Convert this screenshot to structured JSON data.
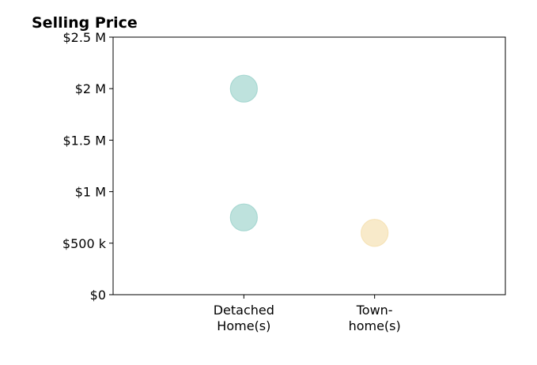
{
  "chart_data": {
    "type": "scatter",
    "title": "Selling Price",
    "xlabel": "",
    "ylabel": "",
    "categories": [
      [
        "Detached",
        "Home(s)"
      ],
      [
        "Town-",
        "home(s)"
      ]
    ],
    "xlim": [
      -1,
      2
    ],
    "ylim": [
      0,
      2500000
    ],
    "yticks": [
      0,
      500000,
      1000000,
      1500000,
      2000000,
      2500000
    ],
    "ytick_labels": [
      "$0",
      "$500 k",
      "$1 M",
      "$1.5 M",
      "$2 M",
      "$2.5 M"
    ],
    "grid": false,
    "points": [
      {
        "category_index": 0,
        "value": 2000000,
        "color": "#a8d8d2"
      },
      {
        "category_index": 0,
        "value": 750000,
        "color": "#a8d8d2"
      },
      {
        "category_index": 1,
        "value": 600000,
        "color": "#f6e3b8"
      }
    ]
  }
}
